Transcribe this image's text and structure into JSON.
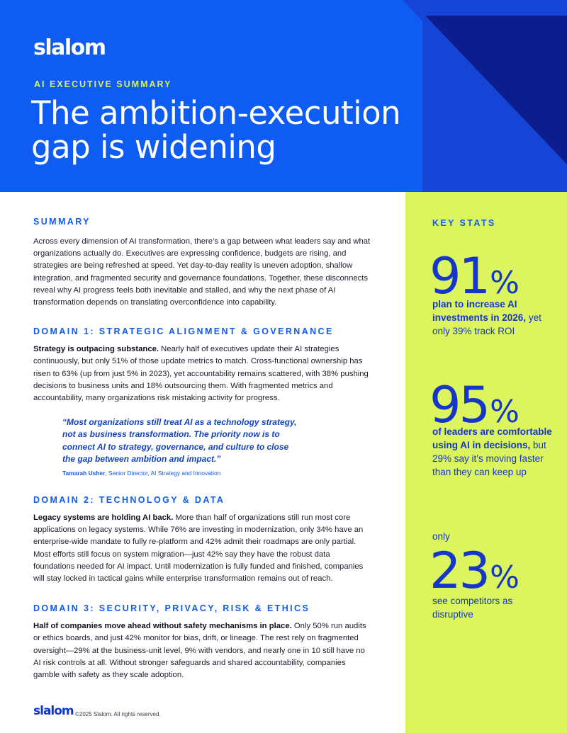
{
  "header": {
    "logo": "slalom",
    "eyebrow": "AI EXECUTIVE SUMMARY",
    "title_line1": "The ambition-execution",
    "title_line2": "gap is widening"
  },
  "summary": {
    "heading": "SUMMARY",
    "body": "Across every dimension of AI transformation, there’s a gap between what leaders say and what organizations actually do. Executives are expressing confidence, budgets are rising, and strategies are being refreshed at speed. Yet day-to-day reality is uneven adoption, shallow integration, and fragmented security and governance foundations. Together, these disconnects reveal why AI progress feels both inevitable  and stalled, and why the next phase of AI transformation depends on translating overconfidence into capability."
  },
  "domain1": {
    "heading": "DOMAIN 1: STRATEGIC ALIGNMENT & GOVERNANCE",
    "lead": "Strategy is outpacing substance.",
    "body": " Nearly half of executives update their AI strategies continuously, but only 51% of those update metrics to match. Cross-functional ownership has risen to 63% (up from just 5% in 2023), yet accountability remains scattered, with 38% pushing decisions to business units and 18% outsourcing them. With fragmented metrics and accountability, many organizations risk mistaking activity for progress.",
    "quote": "“Most organizations still treat AI as a technology strategy, not as business transformation. The priority now is to connect AI to strategy, governance, and culture to close the gap between ambition and impact.”",
    "quote_author": "Tamarah Usher",
    "quote_role": ", Senior Director, AI Strategy and Innovation"
  },
  "domain2": {
    "heading": "DOMAIN 2: TECHNOLOGY & DATA",
    "lead": "Legacy systems are holding AI back.",
    "body": " More than half of organizations still run most  core applications on legacy systems. While 76% are investing in modernization, only  34% have an enterprise-wide mandate to fully re-platform and 42% admit their roadmaps are only partial. Most efforts still focus on system migration—just 42%  say they have the robust data foundations needed for AI impact. Until modernization is fully funded and finished, companies will stay locked in tactical gains while enterprise transformation remains out of reach."
  },
  "domain3": {
    "heading": "DOMAIN 3: SECURITY, PRIVACY, RISK & ETHICS",
    "lead": "Half of companies move ahead without safety mechanisms in place.",
    "body": " Only 50% run audits or ethics boards, and just 42% monitor for bias, drift, or lineage. The rest rely on fragmented oversight—29% at the business-unit level, 9% with vendors, and nearly one in 10 still have no AI risk controls at all. Without stronger safeguards and shared accountability, companies gamble with safety as they scale adoption."
  },
  "key_stats": {
    "heading": "KEY STATS",
    "stats": [
      {
        "value": "91",
        "unit": "%",
        "prefix": "",
        "bold": "plan to increase AI investments in 2026,",
        "rest": " yet only 39% track ROI"
      },
      {
        "value": "95",
        "unit": "%",
        "prefix": "",
        "bold": "of leaders are comfortable using AI in decisions,",
        "rest": " but 29% say it’s moving faster than they can keep up"
      },
      {
        "value": "23",
        "unit": "%",
        "prefix": "only",
        "bold": "",
        "rest": "see competitors as disruptive"
      }
    ]
  },
  "footer": {
    "logo": "slalom",
    "copyright": "©2025 Slalom. All rights reserved."
  },
  "colors": {
    "brand_blue": "#0f5cf2",
    "deep_blue": "#1436c9",
    "lime": "#dcf45e",
    "eyebrow_lime": "#d9f25c"
  }
}
